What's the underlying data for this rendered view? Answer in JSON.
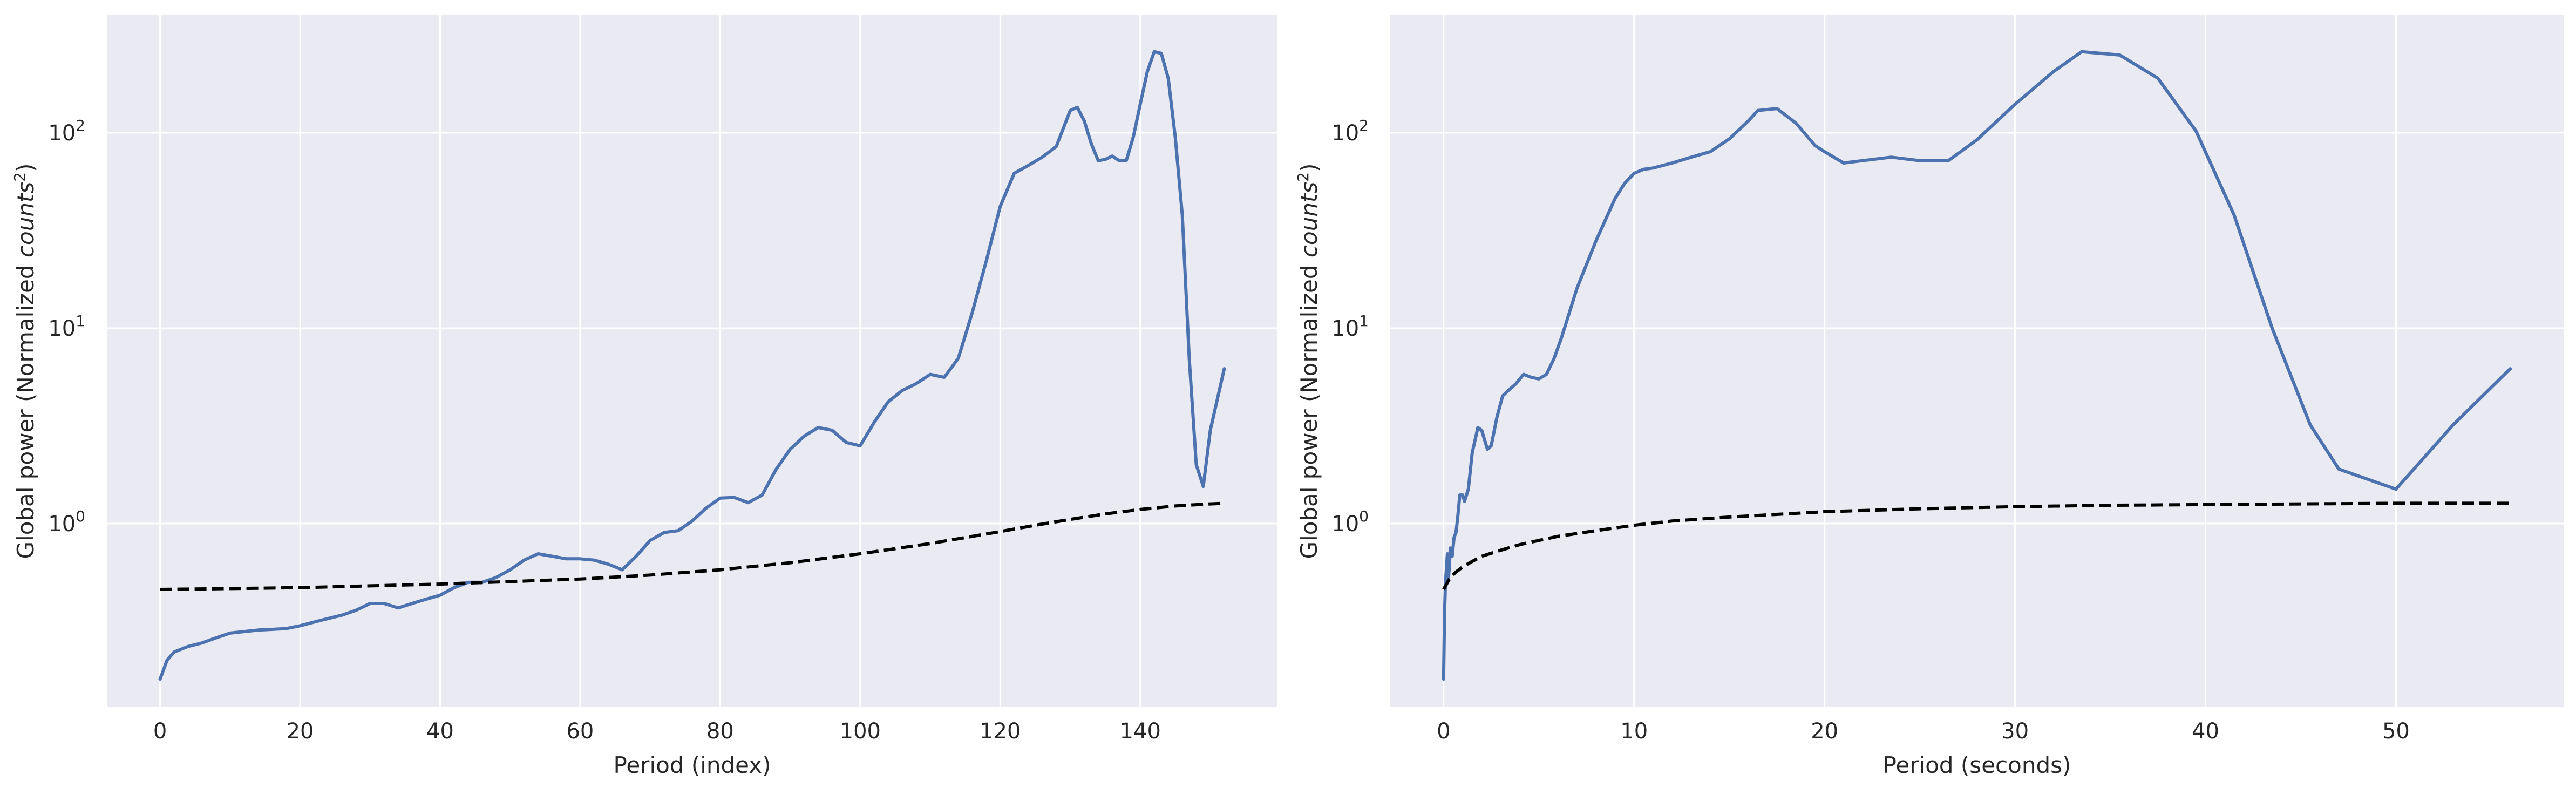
{
  "chart_data": [
    {
      "type": "line",
      "xlabel": "Period (index)",
      "ylabel_main": "Global power (Normalized ",
      "ylabel_italic": "counts",
      "ylabel_sup": "2",
      "ylabel_close": ")",
      "yscale": "log",
      "xlim": [
        -7.6,
        159.6
      ],
      "ylim": [
        0.115,
        400
      ],
      "xticks": [
        0,
        20,
        40,
        60,
        80,
        100,
        120,
        140
      ],
      "xtick_labels": [
        "0",
        "20",
        "40",
        "60",
        "80",
        "100",
        "120",
        "140"
      ],
      "yticks": [
        1,
        10,
        100
      ],
      "ytick_labels": [
        {
          "base": "10",
          "exp": "0"
        },
        {
          "base": "10",
          "exp": "1"
        },
        {
          "base": "10",
          "exp": "2"
        }
      ],
      "grid": true,
      "series": [
        {
          "style": "solid",
          "color": "#4c72b0",
          "x": [
            0,
            1,
            2,
            4,
            6,
            8,
            10,
            14,
            18,
            20,
            23,
            26,
            28,
            30,
            32,
            34,
            36,
            38,
            40,
            42,
            44,
            46,
            48,
            50,
            52,
            54,
            56,
            58,
            60,
            62,
            64,
            66,
            68,
            70,
            72,
            74,
            76,
            78,
            80,
            82,
            84,
            86,
            88,
            90,
            92,
            94,
            96,
            98,
            100,
            102,
            104,
            106,
            108,
            110,
            112,
            114,
            116,
            118,
            120,
            122,
            124,
            126,
            128,
            130,
            131,
            132,
            133,
            134,
            135,
            136,
            137,
            138,
            139,
            140,
            141,
            142,
            143,
            144,
            145,
            146,
            147,
            148,
            149,
            150,
            152
          ],
          "y": [
            0.16,
            0.2,
            0.22,
            0.235,
            0.245,
            0.26,
            0.275,
            0.285,
            0.29,
            0.3,
            0.32,
            0.34,
            0.36,
            0.39,
            0.39,
            0.37,
            0.39,
            0.41,
            0.43,
            0.47,
            0.5,
            0.5,
            0.53,
            0.58,
            0.65,
            0.7,
            0.68,
            0.66,
            0.66,
            0.65,
            0.62,
            0.58,
            0.68,
            0.82,
            0.9,
            0.92,
            1.03,
            1.2,
            1.35,
            1.36,
            1.28,
            1.4,
            1.9,
            2.4,
            2.8,
            3.1,
            3.0,
            2.6,
            2.5,
            3.3,
            4.2,
            4.8,
            5.2,
            5.8,
            5.6,
            7.0,
            12.0,
            22.0,
            42.0,
            62.0,
            68.0,
            75.0,
            85.0,
            130.0,
            135.0,
            115.0,
            88.0,
            72.0,
            73.0,
            76.0,
            72.0,
            72.0,
            95.0,
            140.0,
            205.0,
            260.0,
            255.0,
            190.0,
            95.0,
            38.0,
            7.0,
            2.0,
            1.55,
            3.0,
            6.2
          ]
        },
        {
          "style": "dashed",
          "color": "#000000",
          "x": [
            0,
            10,
            20,
            30,
            40,
            50,
            60,
            70,
            80,
            90,
            100,
            110,
            120,
            125,
            130,
            135,
            140,
            145,
            150,
            152
          ],
          "y": [
            0.46,
            0.465,
            0.47,
            0.48,
            0.49,
            0.505,
            0.52,
            0.545,
            0.58,
            0.63,
            0.7,
            0.79,
            0.91,
            0.98,
            1.05,
            1.12,
            1.18,
            1.23,
            1.26,
            1.27
          ]
        }
      ]
    },
    {
      "type": "line",
      "xlabel": "Period (seconds)",
      "ylabel_main": "Global power (Normalized ",
      "ylabel_italic": "counts",
      "ylabel_sup": "2",
      "ylabel_close": ")",
      "yscale": "log",
      "xlim": [
        -2.8,
        58.8
      ],
      "ylim": [
        0.115,
        400
      ],
      "xticks": [
        0,
        10,
        20,
        30,
        40,
        50
      ],
      "xtick_labels": [
        "0",
        "10",
        "20",
        "30",
        "40",
        "50"
      ],
      "yticks": [
        1,
        10,
        100
      ],
      "ytick_labels": [
        {
          "base": "10",
          "exp": "0"
        },
        {
          "base": "10",
          "exp": "1"
        },
        {
          "base": "10",
          "exp": "2"
        }
      ],
      "grid": true,
      "series": [
        {
          "style": "solid",
          "color": "#4c72b0",
          "x": [
            0.0,
            0.05,
            0.1,
            0.2,
            0.25,
            0.3,
            0.35,
            0.45,
            0.55,
            0.65,
            0.75,
            0.85,
            1.0,
            1.1,
            1.3,
            1.5,
            1.8,
            2.0,
            2.3,
            2.5,
            2.8,
            3.1,
            3.4,
            3.8,
            4.2,
            4.6,
            5.0,
            5.4,
            5.8,
            6.2,
            7.0,
            8.0,
            9.0,
            9.5,
            10.0,
            10.5,
            11.0,
            12.0,
            13.0,
            14.0,
            15.0,
            16.0,
            16.5,
            17.5,
            18.5,
            19.5,
            20.0,
            21.0,
            23.5,
            25.0,
            26.5,
            28.0,
            30.0,
            32.0,
            33.5,
            35.5,
            37.5,
            39.5,
            41.5,
            43.5,
            45.5,
            47.0,
            50.0,
            53.0,
            56.0
          ],
          "y": [
            0.16,
            0.35,
            0.5,
            0.7,
            0.52,
            0.6,
            0.75,
            0.68,
            0.85,
            0.9,
            1.1,
            1.4,
            1.4,
            1.3,
            1.5,
            2.3,
            3.1,
            3.0,
            2.4,
            2.5,
            3.5,
            4.5,
            4.8,
            5.2,
            5.8,
            5.6,
            5.5,
            5.8,
            7.0,
            9.0,
            16.0,
            28.0,
            46.0,
            55.0,
            62.0,
            65.0,
            66.0,
            70.0,
            75.0,
            80.0,
            93.0,
            115.0,
            130.0,
            133.0,
            112.0,
            86.0,
            80.0,
            70.0,
            75.0,
            72.0,
            72.0,
            92.0,
            140.0,
            205.0,
            260.0,
            250.0,
            190.0,
            102.0,
            38.0,
            10.0,
            3.2,
            1.9,
            1.5,
            3.2,
            6.2
          ]
        },
        {
          "style": "dashed",
          "color": "#000000",
          "x": [
            0.0,
            0.3,
            0.6,
            1.0,
            1.5,
            2.0,
            3.0,
            4.0,
            5.0,
            6.0,
            8.0,
            10.0,
            12.0,
            15.0,
            20.0,
            25.0,
            30.0,
            35.0,
            40.0,
            45.0,
            50.0,
            56.0
          ],
          "y": [
            0.46,
            0.52,
            0.56,
            0.6,
            0.64,
            0.68,
            0.73,
            0.78,
            0.82,
            0.86,
            0.92,
            0.98,
            1.03,
            1.08,
            1.15,
            1.19,
            1.22,
            1.24,
            1.25,
            1.26,
            1.27,
            1.27
          ]
        }
      ]
    }
  ]
}
